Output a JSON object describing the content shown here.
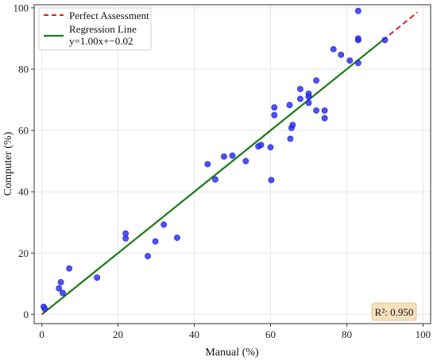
{
  "chart_data": {
    "type": "scatter",
    "xlabel": "Manual (%)",
    "ylabel": "Computer (%)",
    "xlim": [
      -2,
      102
    ],
    "ylim": [
      -3,
      101
    ],
    "xticks": [
      0,
      20,
      40,
      60,
      80,
      100
    ],
    "yticks": [
      0,
      20,
      40,
      60,
      80,
      100
    ],
    "grid": true,
    "legend_position": "top-left",
    "colors": {
      "points": "#2b2bf0",
      "perfect_line": "#e02020",
      "regression_line": "#1a7f1a",
      "annotation_bg": "#f7e1bd"
    },
    "series": [
      {
        "name": "Perfect Assessment",
        "kind": "line",
        "style": "dashed",
        "x": [
          0,
          98.5
        ],
        "y": [
          0,
          98.5
        ]
      },
      {
        "name": "Regression Line",
        "equation": "y=1.00x+−0.02",
        "kind": "line",
        "style": "solid",
        "x": [
          0.3,
          89.8
        ],
        "y": [
          0.3,
          89.8
        ]
      },
      {
        "kind": "scatter",
        "points": [
          [
            0.5,
            2.5
          ],
          [
            0.8,
            1.8
          ],
          [
            4.5,
            8.5
          ],
          [
            5.0,
            10.5
          ],
          [
            5.5,
            7.0
          ],
          [
            7.2,
            15.0
          ],
          [
            14.5,
            12.0
          ],
          [
            22.0,
            24.8
          ],
          [
            22.0,
            26.4
          ],
          [
            27.8,
            19.0
          ],
          [
            29.8,
            23.8
          ],
          [
            32.0,
            29.3
          ],
          [
            35.5,
            25.0
          ],
          [
            43.5,
            49.0
          ],
          [
            45.5,
            44.0
          ],
          [
            47.8,
            51.5
          ],
          [
            50.0,
            51.8
          ],
          [
            53.5,
            50.0
          ],
          [
            56.8,
            54.8
          ],
          [
            57.5,
            55.3
          ],
          [
            60.0,
            54.5
          ],
          [
            60.2,
            43.8
          ],
          [
            61.0,
            65.0
          ],
          [
            61.0,
            67.5
          ],
          [
            65.0,
            68.3
          ],
          [
            65.2,
            57.3
          ],
          [
            65.5,
            60.8
          ],
          [
            65.8,
            61.8
          ],
          [
            67.8,
            70.3
          ],
          [
            67.8,
            73.5
          ],
          [
            70.0,
            69.0
          ],
          [
            70.0,
            71.0
          ],
          [
            70.0,
            72.0
          ],
          [
            72.0,
            66.5
          ],
          [
            72.0,
            76.3
          ],
          [
            74.2,
            64.0
          ],
          [
            74.2,
            66.5
          ],
          [
            76.5,
            86.5
          ],
          [
            78.5,
            84.7
          ],
          [
            80.8,
            82.8
          ],
          [
            83.0,
            82.0
          ],
          [
            83.0,
            89.5
          ],
          [
            83.0,
            90.0
          ],
          [
            83.0,
            99.0
          ],
          [
            90.0,
            89.5
          ]
        ]
      }
    ],
    "annotation": "R²: 0.950"
  }
}
